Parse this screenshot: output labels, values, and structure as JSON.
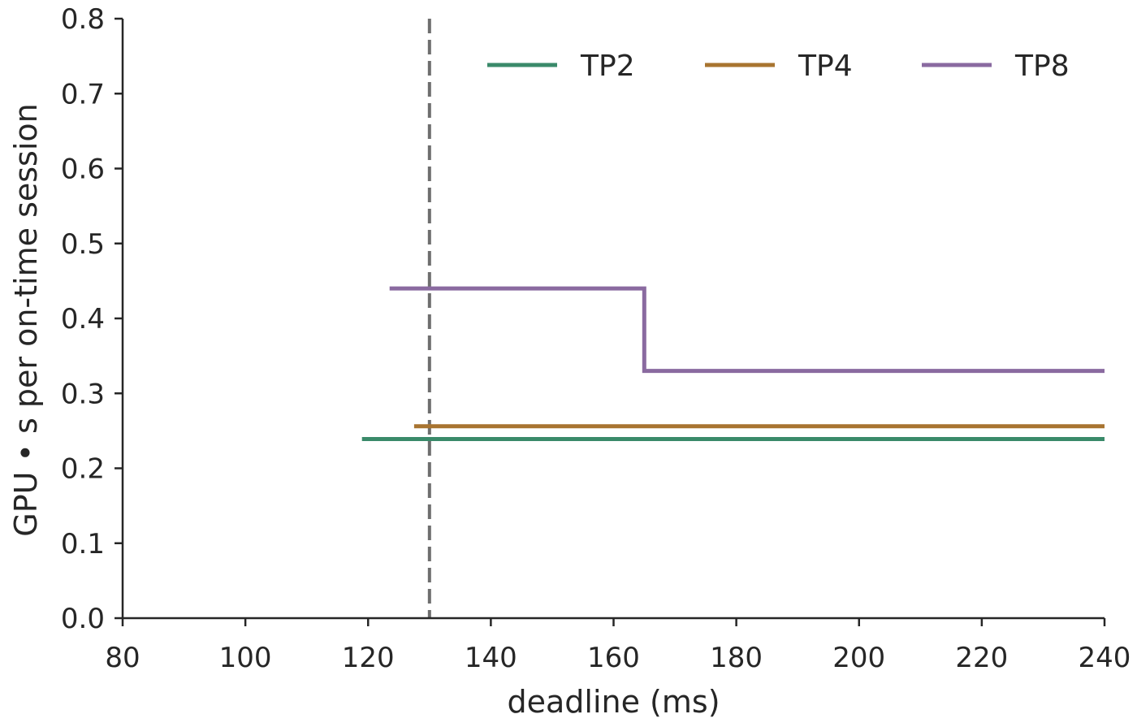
{
  "chart_data": {
    "type": "line",
    "xlabel": "deadline (ms)",
    "ylabel": "GPU • s per on-time session",
    "xlim": [
      80,
      240
    ],
    "ylim": [
      0,
      0.8
    ],
    "xticks": [
      80,
      100,
      120,
      140,
      160,
      180,
      200,
      220,
      240
    ],
    "yticks": [
      0.0,
      0.1,
      0.2,
      0.3,
      0.4,
      0.5,
      0.6,
      0.7,
      0.8
    ],
    "ytick_labels": [
      "0.0",
      "0.1",
      "0.2",
      "0.3",
      "0.4",
      "0.5",
      "0.6",
      "0.7",
      "0.8"
    ],
    "grid": false,
    "legend_position": "top-right",
    "reference_line": {
      "orientation": "vertical",
      "x": 130,
      "style": "dashed",
      "color": "#6e6e6e"
    },
    "series": [
      {
        "name": "TP2",
        "color": "#3a8a6a",
        "step": true,
        "points": [
          [
            119,
            0.239
          ],
          [
            240,
            0.239
          ]
        ]
      },
      {
        "name": "TP4",
        "color": "#a87430",
        "step": true,
        "points": [
          [
            127.5,
            0.256
          ],
          [
            240,
            0.256
          ]
        ]
      },
      {
        "name": "TP8",
        "color": "#8a6aa0",
        "step": true,
        "points": [
          [
            123.5,
            0.44
          ],
          [
            165,
            0.44
          ],
          [
            165,
            0.33
          ],
          [
            240,
            0.33
          ]
        ]
      }
    ]
  }
}
